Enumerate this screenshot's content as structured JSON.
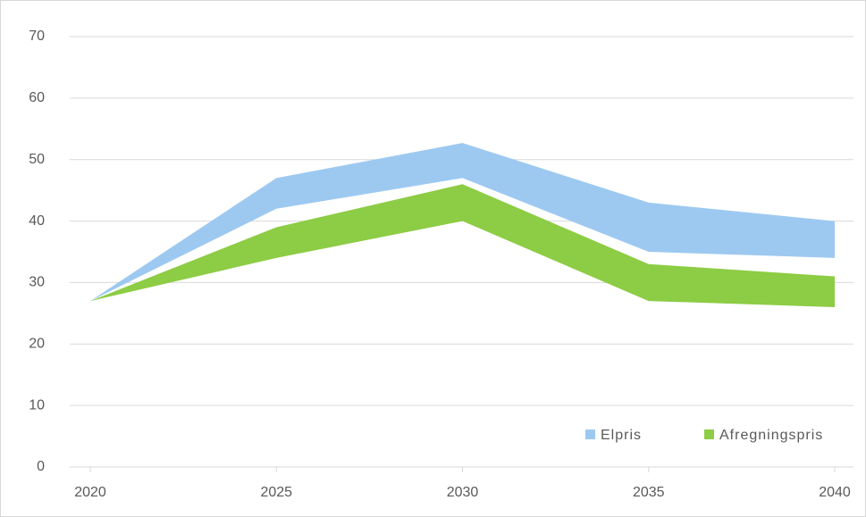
{
  "chart_data": {
    "type": "range_area",
    "x": [
      2020,
      2025,
      2030,
      2035,
      2040
    ],
    "xlim": [
      2020,
      2040
    ],
    "xticks": [
      2020,
      2025,
      2030,
      2035,
      2040
    ],
    "ylim": [
      0,
      70
    ],
    "yticks": [
      0,
      10,
      20,
      30,
      40,
      50,
      60,
      70
    ],
    "grid": true,
    "legend": "bottom-right",
    "series": [
      {
        "name": "Elpris",
        "color": "#9dc9f1",
        "high": [
          27,
          47,
          52.7,
          43,
          40
        ],
        "low": [
          27,
          42,
          47,
          35,
          34
        ]
      },
      {
        "name": "Afregningspris",
        "color": "#8dcc45",
        "high": [
          27,
          39,
          46,
          33,
          31
        ],
        "low": [
          27,
          34,
          40,
          27,
          26
        ]
      }
    ]
  }
}
